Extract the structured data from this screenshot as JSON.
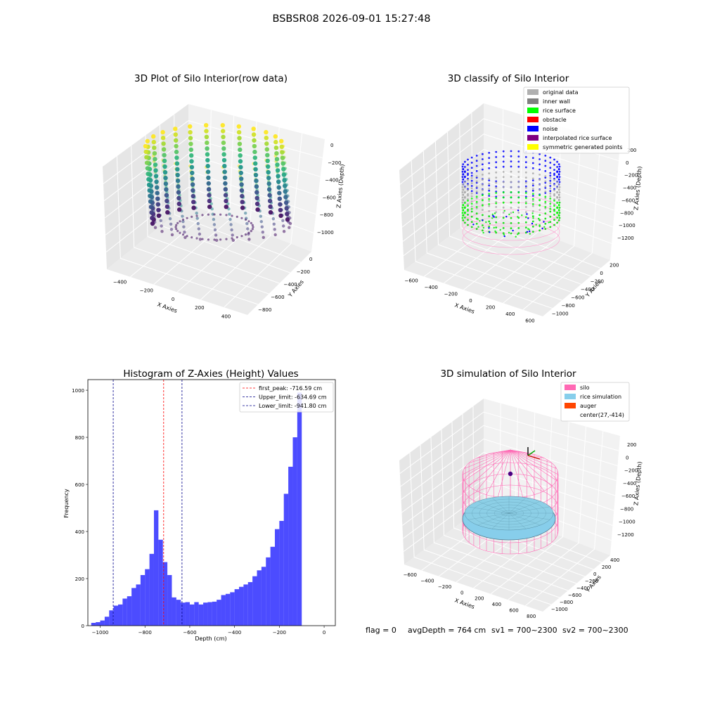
{
  "suptitle": "BSBSR08 2026-09-01 15:27:48",
  "colors": {
    "pane": "#f2f2f2",
    "pane_dark": "#e6e6e6",
    "grid": "#d9d9d9",
    "axis": "#000000",
    "hist": "#0000ff",
    "first_peak": "#ff0000",
    "limit": "#00008b",
    "silo": "#ff69b4",
    "rice": "#87ceeb",
    "rice_edge": "#4a7f95",
    "center": "#4b0082"
  },
  "chart_data": [
    {
      "type": "scatter3d",
      "title": "3D Plot of Silo Interior(row data)",
      "xlabel": "X Axies",
      "ylabel": "Y Axies",
      "zlabel": "Z Axies (Depth)",
      "x_ticks": [
        "−400",
        "−200",
        "0",
        "200",
        "400"
      ],
      "y_ticks": [
        "0",
        "−200",
        "−400",
        "−600",
        "−800"
      ],
      "z_ticks": [
        "0",
        "−200",
        "−400",
        "−600",
        "−800",
        "−1000"
      ],
      "colormap": "viridis",
      "rings": 26
    },
    {
      "type": "scatter3d",
      "title": "3D classify of Silo Interior",
      "xlabel": "X Axies",
      "ylabel": "Y Axies",
      "zlabel": "Z Axies (Depth)",
      "x_ticks": [
        "−600",
        "−400",
        "−200",
        "0",
        "200",
        "400",
        "600"
      ],
      "y_ticks": [
        "200",
        "0",
        "−200",
        "−400",
        "−600",
        "−800",
        "−1000"
      ],
      "z_ticks": [
        "200",
        "0",
        "−200",
        "−400",
        "−600",
        "−800",
        "−1000",
        "−1200"
      ],
      "legend": [
        {
          "label": "original data",
          "color": "#b0b0b0"
        },
        {
          "label": "inner wall",
          "color": "#808080"
        },
        {
          "label": "rice surface",
          "color": "#00ff00"
        },
        {
          "label": "obstacle",
          "color": "#ff0000"
        },
        {
          "label": "noise",
          "color": "#0000ff"
        },
        {
          "label": "interpolated rice surface",
          "color": "#800080"
        },
        {
          "label": "symmetric generated points",
          "color": "#ffff00"
        }
      ]
    },
    {
      "type": "bar",
      "title": "Histogram of Z-Axies (Height) Values",
      "xlabel": "Depth (cm)",
      "ylabel": "Frequency",
      "xlim": [
        -1055,
        50
      ],
      "ylim": [
        0,
        1045
      ],
      "x_ticks": [
        {
          "v": -1000,
          "label": "−1000"
        },
        {
          "v": -800,
          "label": "−800"
        },
        {
          "v": -600,
          "label": "−600"
        },
        {
          "v": -400,
          "label": "−400"
        },
        {
          "v": -200,
          "label": "−200"
        },
        {
          "v": 0,
          "label": "0"
        }
      ],
      "y_ticks": [
        {
          "v": 0,
          "label": "0"
        },
        {
          "v": 200,
          "label": "200"
        },
        {
          "v": 400,
          "label": "400"
        },
        {
          "v": 600,
          "label": "600"
        },
        {
          "v": 800,
          "label": "800"
        },
        {
          "v": 1000,
          "label": "1000"
        }
      ],
      "bin_start": -1040,
      "bin_width": 20,
      "values": [
        12,
        15,
        22,
        38,
        65,
        85,
        90,
        115,
        125,
        160,
        175,
        215,
        240,
        305,
        490,
        365,
        270,
        215,
        120,
        110,
        98,
        100,
        90,
        100,
        90,
        98,
        100,
        102,
        110,
        130,
        135,
        142,
        155,
        165,
        175,
        185,
        210,
        235,
        250,
        290,
        335,
        410,
        445,
        560,
        675,
        800,
        990
      ],
      "vlines": [
        {
          "x": -716.59,
          "label": "first_peak: -716.59 cm",
          "color": "#ff0000"
        },
        {
          "x": -634.69,
          "label": "Upper_limit: -634.69 cm",
          "color": "#00008b"
        },
        {
          "x": -941.8,
          "label": "Lower_limit: -941.80 cm",
          "color": "#00008b"
        }
      ]
    },
    {
      "type": "surface3d",
      "title": "3D simulation of Silo Interior",
      "xlabel": "X Axies",
      "ylabel": "Y Axies",
      "zlabel": "Z Axies (Depth)",
      "x_ticks": [
        "−600",
        "−400",
        "−200",
        "0",
        "200",
        "400",
        "600",
        "800"
      ],
      "y_ticks": [
        "400",
        "200",
        "0",
        "−200",
        "−400",
        "−600",
        "−800",
        "−1000"
      ],
      "z_ticks": [
        "200",
        "0",
        "−200",
        "−400",
        "−600",
        "−800",
        "−1000",
        "−1200"
      ],
      "legend": [
        {
          "label": "silo",
          "color": "#ff69b4"
        },
        {
          "label": "rice simulation",
          "color": "#87ceeb"
        },
        {
          "label": "auger",
          "color": "#ff4500"
        },
        {
          "label": "center(27,-414)",
          "color": ""
        }
      ]
    }
  ],
  "status_line": {
    "flag": "flag = 0",
    "avg_depth": "avgDepth = 764 cm",
    "sv1": "sv1 = 700~2300",
    "sv2": "sv2 = 700~2300"
  }
}
